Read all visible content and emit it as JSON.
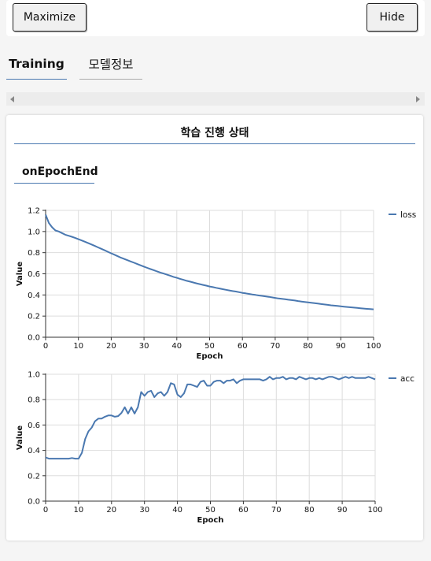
{
  "toolbar": {
    "maximize_label": "Maximize",
    "hide_label": "Hide"
  },
  "tabs": [
    {
      "label": "Training"
    },
    {
      "label": "모델정보"
    }
  ],
  "panel": {
    "title": "학습 진행 상태",
    "section_title": "onEpochEnd"
  },
  "colors": {
    "line": "#4a78b0",
    "grid": "#dddddd",
    "tab_underline": "#4a78b0"
  },
  "chart_data": [
    {
      "type": "line",
      "xlabel": "Epoch",
      "ylabel": "Value",
      "xlim": [
        0,
        100
      ],
      "ylim": [
        0,
        1.2
      ],
      "xticks": [
        0,
        10,
        20,
        30,
        40,
        50,
        60,
        70,
        80,
        90,
        100
      ],
      "yticks": [
        0.0,
        0.2,
        0.4,
        0.6,
        0.8,
        1.0,
        1.2
      ],
      "ytick_labels": [
        "0.0",
        "0.2",
        "0.4",
        "0.6",
        "0.8",
        "1.0",
        "1.2"
      ],
      "grid": true,
      "legend": "right",
      "series": [
        {
          "name": "loss",
          "x": [
            0,
            1,
            2,
            3,
            4,
            5,
            6,
            7,
            8,
            9,
            10,
            11,
            12,
            13,
            14,
            15,
            16,
            17,
            18,
            19,
            20,
            21,
            22,
            23,
            24,
            25,
            26,
            27,
            28,
            29,
            30,
            31,
            32,
            33,
            34,
            35,
            36,
            37,
            38,
            39,
            40,
            41,
            42,
            43,
            44,
            45,
            46,
            47,
            48,
            49,
            50,
            51,
            52,
            53,
            54,
            55,
            56,
            57,
            58,
            59,
            60,
            61,
            62,
            63,
            64,
            65,
            66,
            67,
            68,
            69,
            70,
            71,
            72,
            73,
            74,
            75,
            76,
            77,
            78,
            79,
            80,
            81,
            82,
            83,
            84,
            85,
            86,
            87,
            88,
            89,
            90,
            91,
            92,
            93,
            94,
            95,
            96,
            97,
            98,
            99,
            100
          ],
          "y": [
            1.16,
            1.08,
            1.04,
            1.01,
            1.0,
            0.985,
            0.97,
            0.96,
            0.95,
            0.94,
            0.927,
            0.915,
            0.903,
            0.89,
            0.877,
            0.864,
            0.85,
            0.836,
            0.822,
            0.808,
            0.794,
            0.78,
            0.766,
            0.752,
            0.74,
            0.728,
            0.716,
            0.704,
            0.692,
            0.68,
            0.668,
            0.656,
            0.645,
            0.634,
            0.622,
            0.612,
            0.602,
            0.592,
            0.582,
            0.571,
            0.562,
            0.552,
            0.543,
            0.534,
            0.526,
            0.518,
            0.51,
            0.502,
            0.495,
            0.488,
            0.48,
            0.474,
            0.467,
            0.461,
            0.455,
            0.449,
            0.443,
            0.437,
            0.432,
            0.426,
            0.42,
            0.415,
            0.41,
            0.405,
            0.4,
            0.395,
            0.391,
            0.387,
            0.382,
            0.377,
            0.372,
            0.367,
            0.363,
            0.359,
            0.355,
            0.351,
            0.347,
            0.342,
            0.338,
            0.334,
            0.33,
            0.326,
            0.322,
            0.318,
            0.314,
            0.31,
            0.306,
            0.302,
            0.299,
            0.296,
            0.292,
            0.289,
            0.286,
            0.283,
            0.28,
            0.277,
            0.274,
            0.271,
            0.268,
            0.266,
            0.264
          ]
        }
      ]
    },
    {
      "type": "line",
      "xlabel": "Epoch",
      "ylabel": "Value",
      "xlim": [
        0,
        100
      ],
      "ylim": [
        0,
        1.0
      ],
      "xticks": [
        0,
        10,
        20,
        30,
        40,
        50,
        60,
        70,
        80,
        90,
        100
      ],
      "yticks": [
        0.0,
        0.2,
        0.4,
        0.6,
        0.8,
        1.0
      ],
      "ytick_labels": [
        "0.0",
        "0.2",
        "0.4",
        "0.6",
        "0.8",
        "1.0"
      ],
      "grid": true,
      "legend": "right",
      "series": [
        {
          "name": "acc",
          "x": [
            0,
            1,
            2,
            3,
            4,
            5,
            6,
            7,
            8,
            9,
            10,
            11,
            12,
            13,
            14,
            15,
            16,
            17,
            18,
            19,
            20,
            21,
            22,
            23,
            24,
            25,
            26,
            27,
            28,
            29,
            30,
            31,
            32,
            33,
            34,
            35,
            36,
            37,
            38,
            39,
            40,
            41,
            42,
            43,
            44,
            45,
            46,
            47,
            48,
            49,
            50,
            51,
            52,
            53,
            54,
            55,
            56,
            57,
            58,
            59,
            60,
            61,
            62,
            63,
            64,
            65,
            66,
            67,
            68,
            69,
            70,
            71,
            72,
            73,
            74,
            75,
            76,
            77,
            78,
            79,
            80,
            81,
            82,
            83,
            84,
            85,
            86,
            87,
            88,
            89,
            90,
            91,
            92,
            93,
            94,
            95,
            96,
            97,
            98,
            99,
            100
          ],
          "y": [
            0.345,
            0.335,
            0.335,
            0.335,
            0.335,
            0.335,
            0.335,
            0.335,
            0.34,
            0.335,
            0.335,
            0.38,
            0.49,
            0.55,
            0.58,
            0.63,
            0.65,
            0.65,
            0.665,
            0.675,
            0.675,
            0.665,
            0.67,
            0.695,
            0.74,
            0.69,
            0.74,
            0.69,
            0.74,
            0.86,
            0.83,
            0.86,
            0.87,
            0.82,
            0.85,
            0.86,
            0.83,
            0.86,
            0.93,
            0.92,
            0.84,
            0.82,
            0.85,
            0.92,
            0.92,
            0.91,
            0.9,
            0.94,
            0.95,
            0.91,
            0.91,
            0.94,
            0.95,
            0.95,
            0.93,
            0.95,
            0.95,
            0.96,
            0.93,
            0.95,
            0.96,
            0.96,
            0.96,
            0.96,
            0.96,
            0.96,
            0.95,
            0.96,
            0.98,
            0.96,
            0.97,
            0.97,
            0.98,
            0.96,
            0.97,
            0.97,
            0.96,
            0.98,
            0.97,
            0.96,
            0.97,
            0.97,
            0.96,
            0.97,
            0.96,
            0.97,
            0.98,
            0.98,
            0.97,
            0.96,
            0.97,
            0.98,
            0.97,
            0.98,
            0.97,
            0.97,
            0.97,
            0.97,
            0.98,
            0.97,
            0.96
          ]
        }
      ]
    }
  ]
}
